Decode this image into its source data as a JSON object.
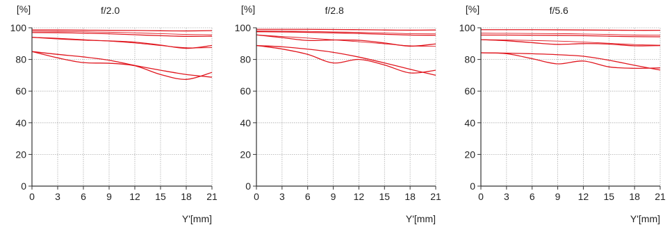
{
  "chart_data": [
    {
      "type": "line",
      "title": "f/2.0",
      "xlabel": "Y'[mm]",
      "ylabel": "[%]",
      "xlim": [
        0,
        21
      ],
      "ylim": [
        0,
        100
      ],
      "x_ticks": [
        "0",
        "3",
        "6",
        "9",
        "12",
        "15",
        "18",
        "21"
      ],
      "y_ticks": [
        "0",
        "20",
        "40",
        "60",
        "80",
        "100"
      ],
      "grid": true,
      "series": [
        {
          "x": [
            0,
            3,
            6,
            9,
            12,
            15,
            18,
            21
          ],
          "values": [
            98.6,
            98.6,
            98.5,
            98.4,
            98.3,
            98.1,
            98.0,
            98.2
          ]
        },
        {
          "x": [
            0,
            3,
            6,
            9,
            12,
            15,
            18,
            21
          ],
          "values": [
            97.8,
            97.7,
            97.5,
            97.2,
            96.8,
            96.3,
            95.8,
            95.6
          ]
        },
        {
          "x": [
            0,
            3,
            6,
            9,
            12,
            15,
            18,
            21
          ],
          "values": [
            97.0,
            96.9,
            96.6,
            96.2,
            95.6,
            95.0,
            94.6,
            94.7
          ]
        },
        {
          "x": [
            0,
            3,
            6,
            9,
            12,
            15,
            18,
            21
          ],
          "values": [
            94.0,
            93.4,
            92.5,
            91.6,
            90.4,
            88.8,
            87.4,
            87.5
          ]
        },
        {
          "x": [
            0,
            3,
            6,
            9,
            12,
            15,
            18,
            21
          ],
          "values": [
            94.0,
            93.0,
            92.2,
            91.7,
            90.9,
            89.1,
            87.0,
            88.8
          ]
        },
        {
          "x": [
            0,
            3,
            6,
            9,
            12,
            15,
            18,
            21
          ],
          "values": [
            85.0,
            83.2,
            81.6,
            79.5,
            76.2,
            73.2,
            70.5,
            68.8
          ]
        },
        {
          "x": [
            0,
            3,
            6,
            9,
            12,
            15,
            18,
            21
          ],
          "values": [
            85.0,
            81.0,
            78.0,
            77.6,
            76.0,
            70.5,
            67.4,
            71.8
          ]
        }
      ]
    },
    {
      "type": "line",
      "title": "f/2.8",
      "xlabel": "Y'[mm]",
      "ylabel": "[%]",
      "xlim": [
        0,
        21
      ],
      "ylim": [
        0,
        100
      ],
      "x_ticks": [
        "0",
        "3",
        "6",
        "9",
        "12",
        "15",
        "18",
        "21"
      ],
      "y_ticks": [
        "0",
        "20",
        "40",
        "60",
        "80",
        "100"
      ],
      "grid": true,
      "series": [
        {
          "x": [
            0,
            3,
            6,
            9,
            12,
            15,
            18,
            21
          ],
          "values": [
            99.0,
            99.0,
            99.0,
            98.9,
            98.8,
            98.6,
            98.5,
            98.6
          ]
        },
        {
          "x": [
            0,
            3,
            6,
            9,
            12,
            15,
            18,
            21
          ],
          "values": [
            98.0,
            97.9,
            97.7,
            97.4,
            97.1,
            96.7,
            96.3,
            96.2
          ]
        },
        {
          "x": [
            0,
            3,
            6,
            9,
            12,
            15,
            18,
            21
          ],
          "values": [
            97.5,
            97.4,
            97.1,
            96.8,
            96.4,
            95.9,
            95.4,
            95.3
          ]
        },
        {
          "x": [
            0,
            3,
            6,
            9,
            12,
            15,
            18,
            21
          ],
          "values": [
            95.5,
            94.5,
            93.5,
            92.4,
            91.2,
            89.9,
            88.6,
            88.3
          ]
        },
        {
          "x": [
            0,
            3,
            6,
            9,
            12,
            15,
            18,
            21
          ],
          "values": [
            95.5,
            93.8,
            92.0,
            92.3,
            92.1,
            90.4,
            88.4,
            89.8
          ]
        },
        {
          "x": [
            0,
            3,
            6,
            9,
            12,
            15,
            18,
            21
          ],
          "values": [
            88.8,
            88.0,
            86.5,
            84.5,
            81.5,
            77.8,
            73.8,
            70.0
          ]
        },
        {
          "x": [
            0,
            3,
            6,
            9,
            12,
            15,
            18,
            21
          ],
          "values": [
            88.8,
            86.6,
            83.2,
            77.8,
            80.0,
            76.5,
            71.5,
            73.2
          ]
        }
      ]
    },
    {
      "type": "line",
      "title": "f/5.6",
      "xlabel": "Y'[mm]",
      "ylabel": "[%]",
      "xlim": [
        0,
        21
      ],
      "ylim": [
        0,
        100
      ],
      "x_ticks": [
        "0",
        "3",
        "6",
        "9",
        "12",
        "15",
        "18",
        "21"
      ],
      "y_ticks": [
        "0",
        "20",
        "40",
        "60",
        "80",
        "100"
      ],
      "grid": true,
      "series": [
        {
          "x": [
            0,
            3,
            6,
            9,
            12,
            15,
            18,
            21
          ],
          "values": [
            98.8,
            98.8,
            98.8,
            98.7,
            98.6,
            98.5,
            98.4,
            98.4
          ]
        },
        {
          "x": [
            0,
            3,
            6,
            9,
            12,
            15,
            18,
            21
          ],
          "values": [
            96.6,
            96.5,
            96.4,
            96.3,
            96.1,
            95.8,
            95.4,
            95.3
          ]
        },
        {
          "x": [
            0,
            3,
            6,
            9,
            12,
            15,
            18,
            21
          ],
          "values": [
            95.4,
            95.4,
            95.3,
            95.2,
            95.0,
            94.7,
            94.4,
            94.3
          ]
        },
        {
          "x": [
            0,
            3,
            6,
            9,
            12,
            15,
            18,
            21
          ],
          "values": [
            92.5,
            92.3,
            92.0,
            91.6,
            91.0,
            90.2,
            89.4,
            89.0
          ]
        },
        {
          "x": [
            0,
            3,
            6,
            9,
            12,
            15,
            18,
            21
          ],
          "values": [
            92.5,
            91.8,
            90.6,
            89.5,
            90.0,
            89.7,
            88.6,
            88.8
          ]
        },
        {
          "x": [
            0,
            3,
            6,
            9,
            12,
            15,
            18,
            21
          ],
          "values": [
            84.2,
            84.0,
            83.6,
            83.0,
            82.0,
            79.5,
            76.3,
            73.3
          ]
        },
        {
          "x": [
            0,
            3,
            6,
            9,
            12,
            15,
            18,
            21
          ],
          "values": [
            84.2,
            83.6,
            80.5,
            77.2,
            79.0,
            75.3,
            74.4,
            74.7
          ]
        }
      ]
    }
  ],
  "colors": {
    "line": "#e0161e",
    "grid": "#aaaaaa",
    "axis": "#333333",
    "background": "#ffffff"
  }
}
